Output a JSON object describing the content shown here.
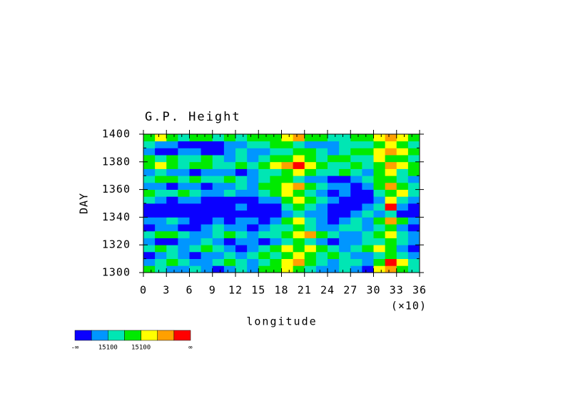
{
  "chart_data": {
    "type": "heatmap",
    "title": "G.P. Height",
    "x_label": "longitude",
    "x_scale_label": "(×10)",
    "y_label": "DAY",
    "xlim": [
      0,
      360
    ],
    "ylim": [
      1300,
      1400
    ],
    "xticks": [
      0,
      {
        "value": 30,
        "label": "3"
      },
      {
        "value": 60,
        "label": "6"
      },
      {
        "value": 90,
        "label": "9"
      },
      {
        "value": 120,
        "label": "12"
      },
      {
        "value": 150,
        "label": "15"
      },
      {
        "value": 180,
        "label": "18"
      },
      {
        "value": 210,
        "label": "21"
      },
      {
        "value": 240,
        "label": "24"
      },
      {
        "value": 270,
        "label": "27"
      },
      {
        "value": 300,
        "label": "30"
      },
      {
        "value": 330,
        "label": "33"
      },
      {
        "value": 360,
        "label": "36"
      }
    ],
    "yticks": [
      1300,
      1320,
      1340,
      1360,
      1380,
      1400
    ],
    "xminor_ticks": [
      10,
      20,
      40,
      50,
      70,
      80,
      100,
      110,
      130,
      140,
      160,
      170,
      190,
      200,
      220,
      230,
      250,
      260,
      280,
      290,
      310,
      320,
      340,
      350
    ],
    "yminor_ticks": [
      1310,
      1330,
      1350,
      1370,
      1390
    ],
    "colors": [
      "#0a00ff",
      "#0096ff",
      "#00e6b4",
      "#00ea00",
      "#ffff00",
      "#ffa000",
      "#ff0000"
    ],
    "colorbar_labels": [
      "-∞",
      "15100",
      "15100",
      "∞"
    ],
    "x": [
      0,
      15,
      30,
      45,
      60,
      75,
      90,
      105,
      120,
      135,
      150,
      165,
      180,
      195,
      210,
      225,
      240,
      255,
      270,
      285,
      300,
      315,
      330,
      345
    ],
    "y": [
      1300,
      1305,
      1310,
      1315,
      1320,
      1325,
      1330,
      1335,
      1340,
      1345,
      1350,
      1355,
      1360,
      1365,
      1370,
      1375,
      1380,
      1385,
      1390,
      1395
    ],
    "z": [
      [
        3,
        2,
        1,
        1,
        2,
        1,
        0,
        1,
        2,
        1,
        3,
        3,
        4,
        3,
        2,
        1,
        1,
        2,
        1,
        0,
        4,
        5,
        3,
        2
      ],
      [
        1,
        2,
        3,
        2,
        1,
        1,
        2,
        3,
        2,
        1,
        2,
        3,
        4,
        5,
        3,
        2,
        1,
        2,
        2,
        1,
        3,
        6,
        4,
        2
      ],
      [
        0,
        1,
        2,
        1,
        0,
        1,
        1,
        2,
        1,
        2,
        3,
        2,
        3,
        4,
        3,
        2,
        3,
        2,
        1,
        1,
        2,
        3,
        2,
        1
      ],
      [
        2,
        3,
        2,
        1,
        2,
        3,
        2,
        1,
        0,
        1,
        2,
        3,
        4,
        3,
        4,
        3,
        2,
        1,
        2,
        3,
        4,
        3,
        1,
        0
      ],
      [
        1,
        0,
        0,
        1,
        1,
        2,
        1,
        0,
        1,
        1,
        0,
        1,
        2,
        3,
        2,
        1,
        0,
        1,
        1,
        2,
        2,
        3,
        2,
        1
      ],
      [
        2,
        3,
        3,
        2,
        1,
        1,
        2,
        3,
        2,
        1,
        2,
        2,
        3,
        4,
        5,
        3,
        2,
        1,
        1,
        2,
        3,
        4,
        2,
        1
      ],
      [
        0,
        1,
        1,
        0,
        0,
        1,
        2,
        1,
        1,
        0,
        1,
        2,
        2,
        3,
        2,
        1,
        1,
        2,
        2,
        1,
        2,
        3,
        1,
        0
      ],
      [
        1,
        1,
        2,
        1,
        0,
        0,
        1,
        0,
        1,
        1,
        0,
        1,
        3,
        4,
        2,
        1,
        0,
        1,
        2,
        1,
        3,
        5,
        3,
        1
      ],
      [
        0,
        0,
        0,
        0,
        0,
        0,
        0,
        0,
        0,
        0,
        0,
        0,
        1,
        2,
        1,
        1,
        0,
        0,
        1,
        2,
        1,
        2,
        0,
        0
      ],
      [
        0,
        0,
        0,
        0,
        0,
        0,
        0,
        0,
        1,
        0,
        0,
        0,
        2,
        3,
        2,
        1,
        0,
        0,
        0,
        1,
        2,
        6,
        1,
        0
      ],
      [
        2,
        1,
        0,
        1,
        1,
        0,
        0,
        0,
        0,
        0,
        1,
        1,
        3,
        4,
        3,
        2,
        1,
        0,
        0,
        0,
        1,
        4,
        2,
        1
      ],
      [
        3,
        2,
        2,
        3,
        2,
        1,
        1,
        2,
        1,
        1,
        2,
        3,
        4,
        3,
        2,
        1,
        0,
        1,
        0,
        0,
        2,
        3,
        4,
        2
      ],
      [
        1,
        1,
        0,
        1,
        1,
        0,
        1,
        1,
        2,
        1,
        3,
        3,
        4,
        5,
        3,
        2,
        1,
        1,
        0,
        1,
        3,
        5,
        3,
        2
      ],
      [
        2,
        3,
        3,
        2,
        3,
        2,
        2,
        3,
        2,
        1,
        2,
        3,
        3,
        2,
        1,
        1,
        0,
        0,
        1,
        2,
        3,
        3,
        2,
        1
      ],
      [
        1,
        2,
        1,
        1,
        0,
        1,
        1,
        1,
        0,
        1,
        2,
        2,
        3,
        4,
        3,
        2,
        2,
        3,
        2,
        1,
        3,
        4,
        2,
        3
      ],
      [
        3,
        4,
        3,
        2,
        3,
        3,
        2,
        2,
        3,
        2,
        3,
        4,
        5,
        6,
        4,
        3,
        2,
        2,
        3,
        2,
        3,
        5,
        4,
        3
      ],
      [
        3,
        2,
        3,
        2,
        2,
        3,
        2,
        1,
        2,
        1,
        2,
        3,
        3,
        4,
        3,
        2,
        3,
        3,
        2,
        2,
        4,
        3,
        3,
        2
      ],
      [
        1,
        0,
        0,
        1,
        1,
        0,
        0,
        1,
        2,
        1,
        1,
        2,
        2,
        3,
        3,
        2,
        1,
        2,
        3,
        3,
        4,
        5,
        4,
        3
      ],
      [
        2,
        1,
        1,
        0,
        0,
        0,
        0,
        1,
        1,
        2,
        2,
        3,
        3,
        2,
        1,
        1,
        1,
        2,
        2,
        2,
        3,
        4,
        3,
        2
      ],
      [
        3,
        4,
        3,
        2,
        3,
        3,
        2,
        3,
        2,
        3,
        3,
        3,
        4,
        5,
        3,
        3,
        2,
        2,
        3,
        3,
        4,
        5,
        4,
        3
      ]
    ]
  }
}
